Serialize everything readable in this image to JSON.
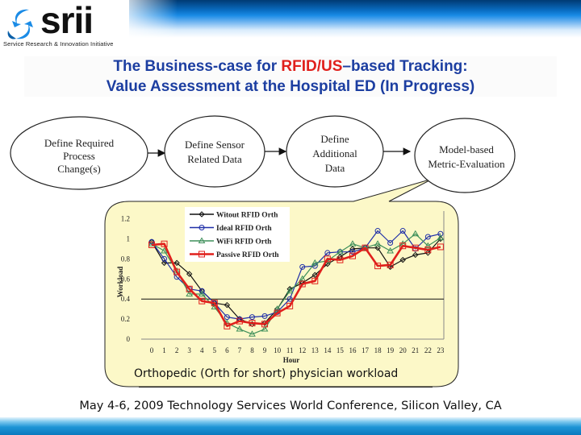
{
  "header": {
    "logo_text": "srii",
    "logo_tagline": "Service Research & Innovation Initiative",
    "title_line1_before": "The Business-case for ",
    "title_line1_highlight": "RFID/US",
    "title_line1_after": "–based Tracking:",
    "title_line2": "Value Assessment at the Hospital ED (In Progress)",
    "colors": {
      "title": "#1c3ea1",
      "highlight": "#e0201c",
      "band_dark": "#003a73"
    }
  },
  "flow": {
    "nodes": [
      {
        "lines": [
          "Define  Required",
          "Process",
          "Change(s)"
        ]
      },
      {
        "lines": [
          "Define Sensor",
          "Related Data"
        ]
      },
      {
        "lines": [
          "Define",
          "Additional",
          "Data"
        ]
      },
      {
        "lines": [
          "Model-based",
          "Metric-Evaluation"
        ]
      }
    ]
  },
  "callout": {
    "caption": "Orthopedic (Orth for short) physician workload",
    "background": "#fcf8c8"
  },
  "chart_data": {
    "type": "line",
    "title": "Orthopedic (Orth for short) physician workload",
    "xlabel": "Hour",
    "ylabel": "Workload",
    "x": [
      0,
      1,
      2,
      3,
      4,
      5,
      6,
      7,
      8,
      9,
      10,
      11,
      12,
      13,
      14,
      15,
      16,
      17,
      18,
      19,
      20,
      21,
      22,
      23
    ],
    "x_tick_labels": [
      "0",
      "1",
      "2",
      "3",
      "4",
      "5",
      "6",
      "7",
      "8",
      "9",
      "10",
      "11",
      "12",
      "13",
      "14",
      "15",
      "16",
      "17",
      "18",
      "19",
      "20",
      "21",
      "22",
      "23"
    ],
    "y_tick_labels": [
      "0",
      "0.2",
      "0.4",
      "0.6",
      "0.8",
      "1",
      "1.2"
    ],
    "ylim": [
      0,
      1.2
    ],
    "grid": false,
    "reference_line": 0.4,
    "legend_position": "top-left inside",
    "series": [
      {
        "name": "Witout RFID Orth",
        "color": "#111111",
        "marker": "diamond",
        "values": [
          0.97,
          0.76,
          0.76,
          0.65,
          0.48,
          0.36,
          0.34,
          0.2,
          0.15,
          0.16,
          0.3,
          0.5,
          0.56,
          0.64,
          0.75,
          0.82,
          0.9,
          0.91,
          0.91,
          0.72,
          0.79,
          0.84,
          0.86,
          1.0
        ]
      },
      {
        "name": "Ideal RFID Orth",
        "color": "#1f2fa8",
        "marker": "circle",
        "values": [
          0.97,
          0.8,
          0.62,
          0.5,
          0.48,
          0.36,
          0.22,
          0.2,
          0.22,
          0.23,
          0.27,
          0.4,
          0.72,
          0.73,
          0.86,
          0.87,
          0.87,
          0.91,
          1.08,
          0.96,
          1.08,
          0.9,
          1.02,
          1.05
        ]
      },
      {
        "name": "WiFi RFID Orth",
        "color": "#3e8f5a",
        "marker": "triangle",
        "values": [
          0.95,
          0.88,
          0.68,
          0.45,
          0.45,
          0.32,
          0.16,
          0.1,
          0.05,
          0.1,
          0.3,
          0.48,
          0.6,
          0.76,
          0.78,
          0.87,
          0.95,
          0.91,
          0.95,
          0.88,
          0.95,
          1.05,
          0.93,
          1.01
        ]
      },
      {
        "name": "Passive RFID Orth",
        "color": "#e0201c",
        "marker": "square",
        "values": [
          0.94,
          0.95,
          0.67,
          0.5,
          0.38,
          0.36,
          0.13,
          0.18,
          0.16,
          0.15,
          0.26,
          0.33,
          0.55,
          0.58,
          0.8,
          0.79,
          0.83,
          0.91,
          0.73,
          0.74,
          0.93,
          0.91,
          0.89,
          0.92
        ]
      }
    ]
  },
  "footer": {
    "text": "May 4-6, 2009 Technology Services World Conference,  Silicon Valley, CA"
  }
}
